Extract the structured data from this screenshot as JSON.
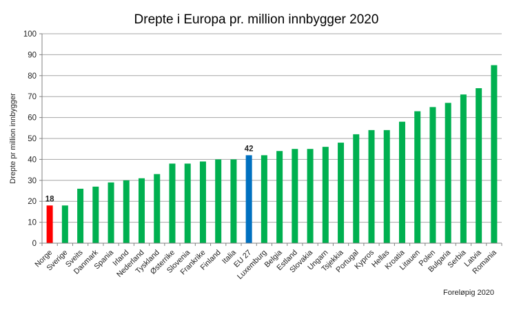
{
  "chart_data": {
    "type": "bar",
    "title": "Drepte i Europa pr. million innbygger 2020",
    "xlabel": "",
    "ylabel": "Drepte pr million innbygger",
    "ylim": [
      0,
      100
    ],
    "yticks": [
      0,
      10,
      20,
      30,
      40,
      50,
      60,
      70,
      80,
      90,
      100
    ],
    "grid": true,
    "legend": "none",
    "categories": [
      "Norge",
      "Sverige",
      "Sveits",
      "Danmark",
      "Spania",
      "Irland",
      "Nederland",
      "Tyskland",
      "Østerrike",
      "Slovenia",
      "Frankrike",
      "Finland",
      "Italia",
      "EU 27",
      "Luxemburg",
      "Belgia",
      "Estland",
      "Slovakia",
      "Ungarn",
      "Tsjekkia",
      "Portugal",
      "Kypros",
      "Hellas",
      "Kroatia",
      "Litauen",
      "Polen",
      "Bulgaria",
      "Serbia",
      "Latvia",
      "Romania"
    ],
    "values": [
      18,
      18,
      26,
      27,
      29,
      30,
      31,
      33,
      38,
      38,
      39,
      40,
      40,
      42,
      42,
      44,
      45,
      45,
      46,
      48,
      52,
      54,
      54,
      58,
      63,
      65,
      67,
      71,
      74,
      85
    ],
    "highlight": {
      "Norge": "#ff0000",
      "EU 27": "#0070c0"
    },
    "default_color": "#00b050",
    "data_labels": {
      "Norge": "18",
      "EU 27": "42"
    },
    "annotation": "Foreløpig 2020"
  }
}
